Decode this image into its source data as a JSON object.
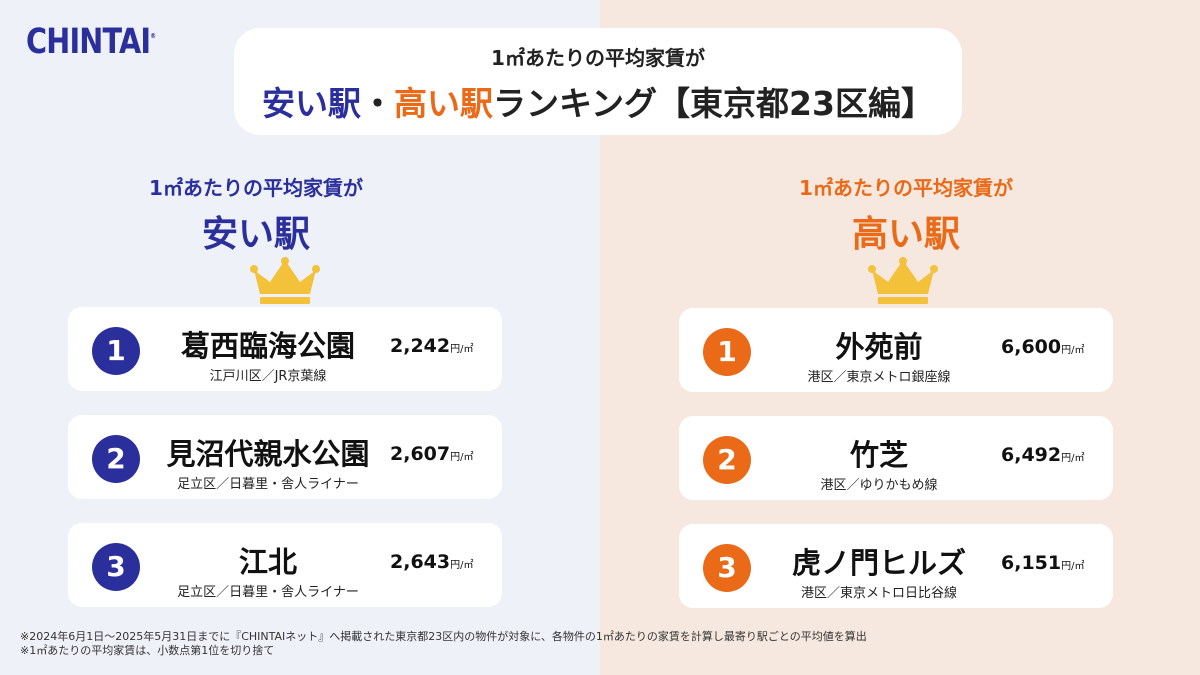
{
  "logo": {
    "text": "CHINTAI",
    "mark": "®"
  },
  "title": {
    "line1": "1㎡あたりの平均家賃が",
    "cheap": "安い駅",
    "sep": "・",
    "expensive": "高い駅",
    "rest": "ランキング【東京都23区編】"
  },
  "left": {
    "sub": "1㎡あたりの平均家賃が",
    "heading": "安い駅",
    "items": [
      {
        "rank": "1",
        "station": "葛西臨海公園",
        "line": "江戸川区／JR京葉線",
        "price": "2,242",
        "unit": "円/㎡"
      },
      {
        "rank": "2",
        "station": "見沼代親水公園",
        "line": "足立区／日暮里・舎人ライナー",
        "price": "2,607",
        "unit": "円/㎡"
      },
      {
        "rank": "3",
        "station": "江北",
        "line": "足立区／日暮里・舎人ライナー",
        "price": "2,643",
        "unit": "円/㎡"
      }
    ]
  },
  "right": {
    "sub": "1㎡あたりの平均家賃が",
    "heading": "高い駅",
    "items": [
      {
        "rank": "1",
        "station": "外苑前",
        "line": "港区／東京メトロ銀座線",
        "price": "6,600",
        "unit": "円/㎡"
      },
      {
        "rank": "2",
        "station": "竹芝",
        "line": "港区／ゆりかもめ線",
        "price": "6,492",
        "unit": "円/㎡"
      },
      {
        "rank": "3",
        "station": "虎ノ門ヒルズ",
        "line": "港区／東京メトロ日比谷線",
        "price": "6,151",
        "unit": "円/㎡"
      }
    ]
  },
  "footnotes": [
    "※2024年6月1日〜2025年5月31日までに『CHINTAIネット』へ掲載された東京都23区内の物件が対象に、各物件の1㎡あたりの家賃を計算し最寄り駅ごとの平均値を算出",
    "※1㎡あたりの平均家賃は、小数点第1位を切り捨て"
  ],
  "icons": {
    "crown": "crown-icon"
  },
  "colors": {
    "navy": "#2b2f9c",
    "orange": "#ea6a17",
    "crown": "#f3c13a",
    "left_bg": "#eef1f8",
    "right_bg": "#f6e8df"
  }
}
